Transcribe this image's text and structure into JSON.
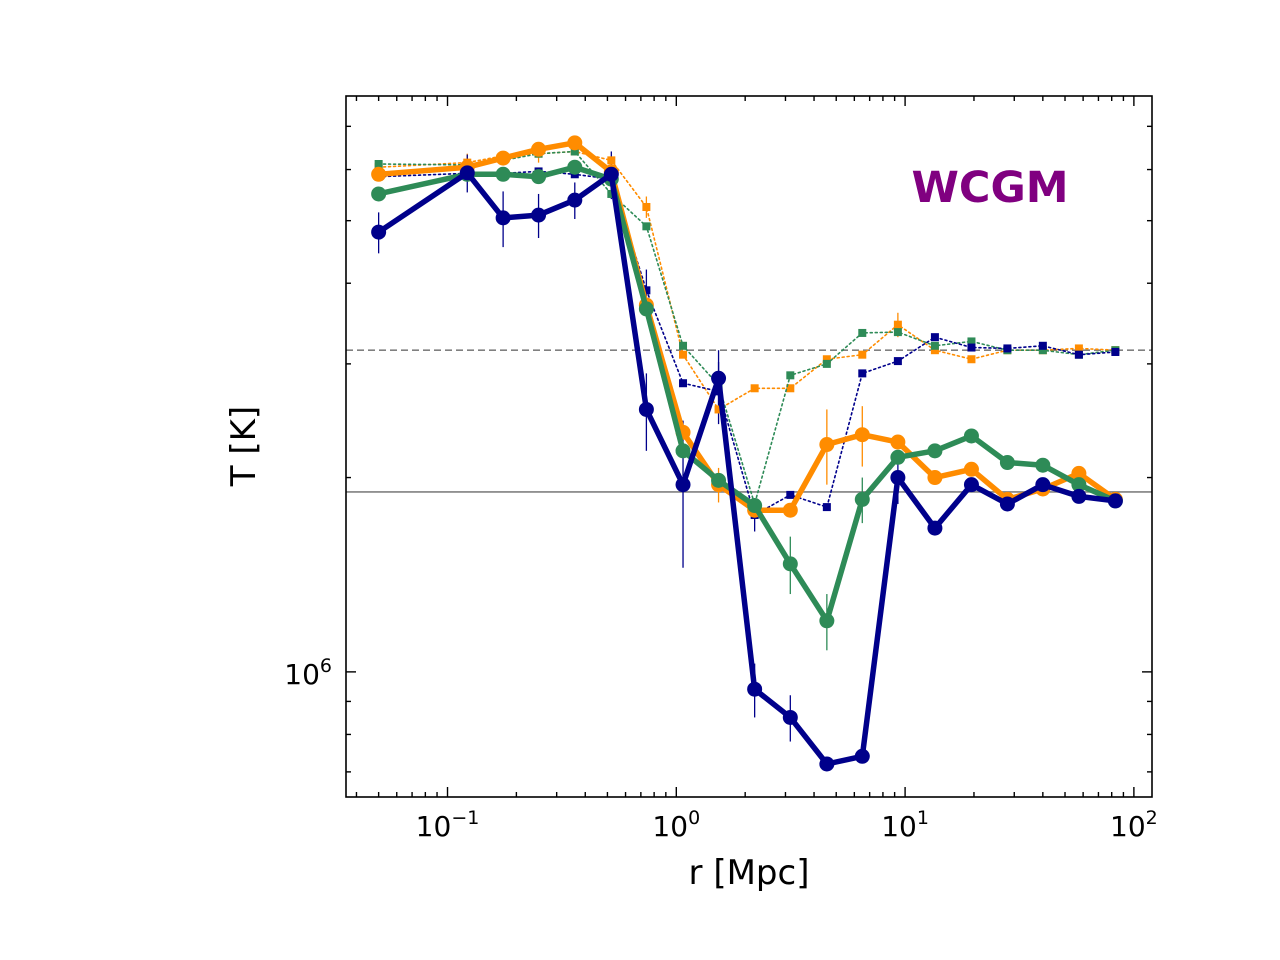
{
  "chart_data": {
    "type": "line",
    "title": "",
    "xlabel": "r [Mpc]",
    "ylabel": "T [K]",
    "xscale": "log",
    "yscale": "log",
    "xlim": [
      0.036,
      120
    ],
    "ylim": [
      640000,
      7800000
    ],
    "grid": false,
    "annotation": {
      "text": "WCGM",
      "color": "#800080"
    },
    "x_ticks": [
      {
        "value": 0.1,
        "base": "10",
        "exp": "−1"
      },
      {
        "value": 1,
        "base": "10",
        "exp": "0"
      },
      {
        "value": 10,
        "base": "10",
        "exp": "1"
      },
      {
        "value": 100,
        "base": "10",
        "exp": "2"
      }
    ],
    "y_ticks": [
      {
        "value": 1000000,
        "base": "10",
        "exp": "6"
      }
    ],
    "reference_lines": [
      {
        "name": "dashed-reference",
        "y": 3150000,
        "style": "dashed",
        "color": "#808080"
      },
      {
        "name": "solid-reference",
        "y": 1900000,
        "style": "solid",
        "color": "#808080"
      }
    ],
    "x": [
      0.05,
      0.122,
      0.175,
      0.25,
      0.36,
      0.52,
      0.74,
      1.07,
      1.53,
      2.2,
      3.15,
      4.55,
      6.5,
      9.3,
      13.5,
      19.5,
      28,
      40,
      57.5,
      83
    ],
    "series": [
      {
        "name": "orange-solid",
        "color": "#ff8c00",
        "style": "solid",
        "marker": "circle",
        "values": [
          5900000,
          6050000,
          6250000,
          6450000,
          6600000,
          5950000,
          3700000,
          2350000,
          1950000,
          1780000,
          1780000,
          2250000,
          2330000,
          2270000,
          2000000,
          2060000,
          1850000,
          1920000,
          2030000,
          1850000
        ],
        "errors": [
          0,
          0,
          0,
          0,
          0,
          0,
          0,
          0,
          120000,
          0,
          0,
          300000,
          250000,
          0,
          0,
          0,
          0,
          0,
          0,
          0
        ]
      },
      {
        "name": "green-solid",
        "color": "#2e8b57",
        "style": "solid",
        "marker": "circle",
        "values": [
          5500000,
          5900000,
          5900000,
          5850000,
          6050000,
          5800000,
          3650000,
          2200000,
          1980000,
          1810000,
          1470000,
          1200000,
          1850000,
          2150000,
          2200000,
          2320000,
          2110000,
          2090000,
          1950000,
          1840000
        ],
        "errors": [
          0,
          0,
          0,
          0,
          0,
          0,
          0,
          0,
          0,
          0,
          150000,
          120000,
          150000,
          0,
          0,
          0,
          0,
          0,
          0,
          0
        ]
      },
      {
        "name": "navy-solid",
        "color": "#00008b",
        "style": "solid",
        "marker": "circle",
        "values": [
          4800000,
          5930000,
          5050000,
          5100000,
          5380000,
          5900000,
          2550000,
          1950000,
          2850000,
          940000,
          850000,
          720000,
          740000,
          2000000,
          1670000,
          1950000,
          1820000,
          1950000,
          1870000,
          1840000
        ],
        "errors": [
          350000,
          400000,
          500000,
          400000,
          350000,
          500000,
          350000,
          500000,
          300000,
          90000,
          70000,
          0,
          0,
          180000,
          0,
          0,
          0,
          0,
          0,
          0
        ]
      },
      {
        "name": "orange-dotted",
        "color": "#ff8c00",
        "style": "dotted",
        "marker": "square",
        "values": [
          6050000,
          6150000,
          6300000,
          6350000,
          6400000,
          6200000,
          5250000,
          3100000,
          2550000,
          2750000,
          2750000,
          3050000,
          3100000,
          3450000,
          3150000,
          3050000,
          3150000,
          3150000,
          3170000,
          3150000
        ],
        "errors": [
          0,
          200000,
          0,
          200000,
          0,
          0,
          200000,
          0,
          0,
          0,
          0,
          0,
          0,
          150000,
          0,
          0,
          0,
          0,
          0,
          0
        ]
      },
      {
        "name": "green-dotted",
        "color": "#2e8b57",
        "style": "dotted",
        "marker": "square",
        "values": [
          6120000,
          6100000,
          6200000,
          6350000,
          6400000,
          5500000,
          4900000,
          3200000,
          2780000,
          1820000,
          2880000,
          3000000,
          3350000,
          3360000,
          3200000,
          3250000,
          3150000,
          3150000,
          3100000,
          3150000
        ],
        "errors": [
          0,
          0,
          0,
          0,
          0,
          0,
          0,
          0,
          0,
          0,
          0,
          0,
          0,
          0,
          0,
          0,
          0,
          0,
          0,
          0
        ]
      },
      {
        "name": "navy-dotted",
        "color": "#00008b",
        "style": "dotted",
        "marker": "square",
        "values": [
          5850000,
          5920000,
          5920000,
          5960000,
          5900000,
          5800000,
          3900000,
          2800000,
          2720000,
          1750000,
          1880000,
          1800000,
          2900000,
          3030000,
          3300000,
          3180000,
          3170000,
          3200000,
          3100000,
          3130000
        ],
        "errors": [
          0,
          0,
          0,
          0,
          0,
          0,
          300000,
          0,
          300000,
          100000,
          0,
          0,
          0,
          0,
          0,
          0,
          0,
          0,
          0,
          0
        ]
      }
    ]
  }
}
